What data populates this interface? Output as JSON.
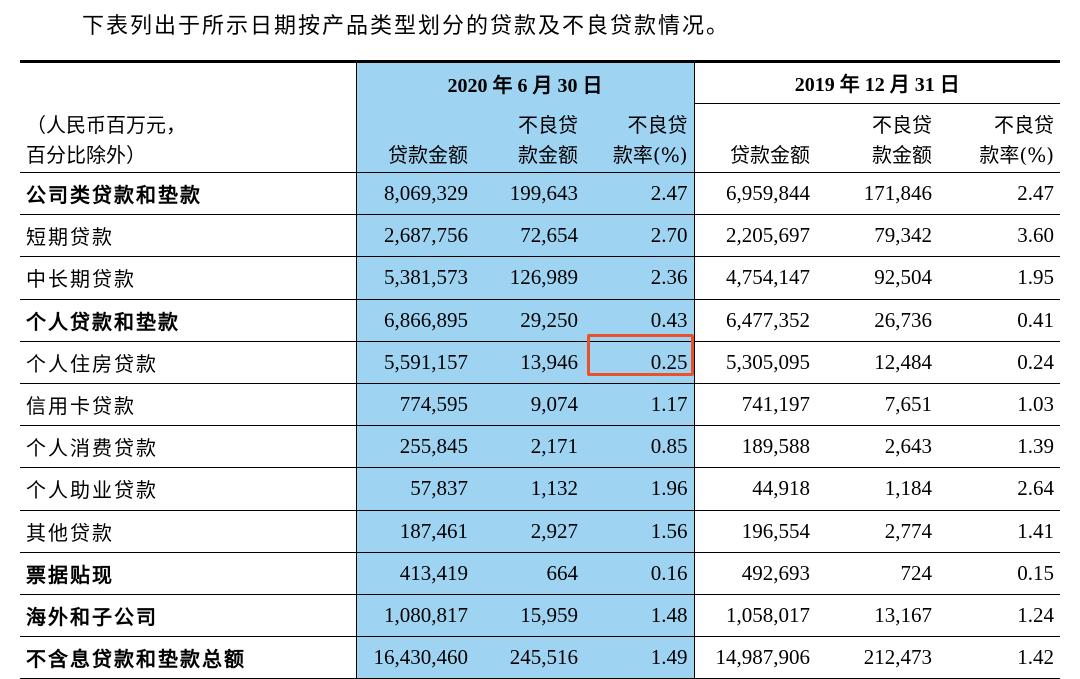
{
  "intro": "下表列出于所示日期按产品类型划分的贷款及不良贷款情况。",
  "header": {
    "unit_line1": "（人民币百万元，",
    "unit_line2": "百分比除外）",
    "periods": [
      "2020 年 6 月 30 日",
      "2019 年 12 月 31 日"
    ],
    "columns": [
      {
        "line1": "",
        "line2": "贷款金额"
      },
      {
        "line1": "不良贷",
        "line2": "款金额"
      },
      {
        "line1": "不良贷",
        "line2": "款率(%)"
      },
      {
        "line1": "",
        "line2": "贷款金额"
      },
      {
        "line1": "不良贷",
        "line2": "款金额"
      },
      {
        "line1": "不良贷",
        "line2": "款率(%)"
      }
    ]
  },
  "rows": [
    {
      "label": "公司类贷款和垫款",
      "bold": true,
      "values": [
        "8,069,329",
        "199,643",
        "2.47",
        "6,959,844",
        "171,846",
        "2.47"
      ]
    },
    {
      "label": "短期贷款",
      "bold": false,
      "values": [
        "2,687,756",
        "72,654",
        "2.70",
        "2,205,697",
        "79,342",
        "3.60"
      ]
    },
    {
      "label": "中长期贷款",
      "bold": false,
      "values": [
        "5,381,573",
        "126,989",
        "2.36",
        "4,754,147",
        "92,504",
        "1.95"
      ]
    },
    {
      "label": "个人贷款和垫款",
      "bold": true,
      "values": [
        "6,866,895",
        "29,250",
        "0.43",
        "6,477,352",
        "26,736",
        "0.41"
      ]
    },
    {
      "label": "个人住房贷款",
      "bold": false,
      "values": [
        "5,591,157",
        "13,946",
        "0.25",
        "5,305,095",
        "12,484",
        "0.24"
      ]
    },
    {
      "label": "信用卡贷款",
      "bold": false,
      "values": [
        "774,595",
        "9,074",
        "1.17",
        "741,197",
        "7,651",
        "1.03"
      ]
    },
    {
      "label": "个人消费贷款",
      "bold": false,
      "values": [
        "255,845",
        "2,171",
        "0.85",
        "189,588",
        "2,643",
        "1.39"
      ]
    },
    {
      "label": "个人助业贷款",
      "bold": false,
      "values": [
        "57,837",
        "1,132",
        "1.96",
        "44,918",
        "1,184",
        "2.64"
      ]
    },
    {
      "label": "其他贷款",
      "bold": false,
      "values": [
        "187,461",
        "2,927",
        "1.56",
        "196,554",
        "2,774",
        "1.41"
      ]
    },
    {
      "label": "票据贴现",
      "bold": true,
      "values": [
        "413,419",
        "664",
        "0.16",
        "492,693",
        "724",
        "0.15"
      ]
    },
    {
      "label": "海外和子公司",
      "bold": true,
      "values": [
        "1,080,817",
        "15,959",
        "1.48",
        "1,058,017",
        "13,167",
        "1.24"
      ]
    },
    {
      "label": "不含息贷款和垫款总额",
      "bold": true,
      "values": [
        "16,430,460",
        "245,516",
        "1.49",
        "14,987,906",
        "212,473",
        "1.42"
      ]
    }
  ],
  "colors": {
    "highlight_column_bg": "#9fd3f2",
    "annotation_box": "#e8522b"
  }
}
